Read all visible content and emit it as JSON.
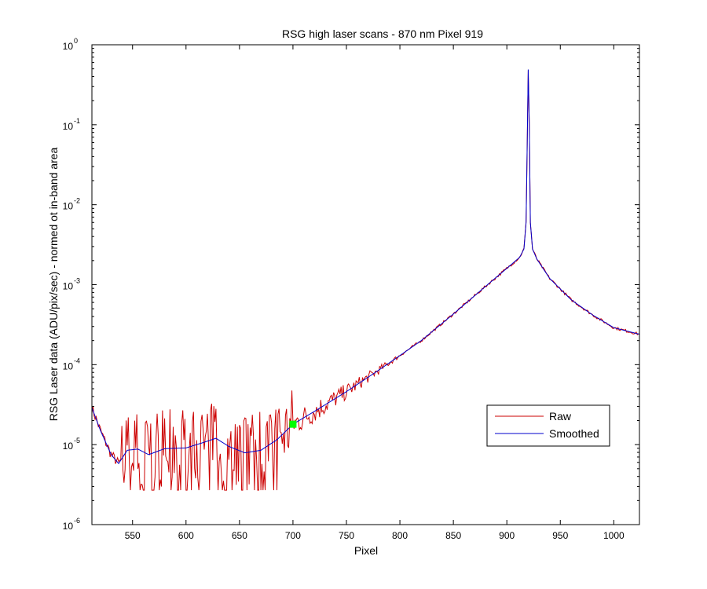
{
  "chart_data": {
    "type": "line",
    "title": "RSG high laser scans  - 870 nm    Pixel 919",
    "xlabel": "Pixel",
    "ylabel": "RSG Laser data (ADU/pix/sec) - normed ot in-band area",
    "xlim": [
      512,
      1024
    ],
    "ylim": [
      1e-06,
      1
    ],
    "yscale": "log",
    "grid": false,
    "legend_position": "right",
    "xticks": [
      550,
      600,
      650,
      700,
      750,
      800,
      850,
      900,
      950,
      1000
    ],
    "yticks": [
      {
        "base": "10",
        "exp": "0",
        "value": 1
      },
      {
        "base": "10",
        "exp": "-1",
        "value": 0.1
      },
      {
        "base": "10",
        "exp": "-2",
        "value": 0.01
      },
      {
        "base": "10",
        "exp": "-3",
        "value": 0.001
      },
      {
        "base": "10",
        "exp": "-4",
        "value": 0.0001
      },
      {
        "base": "10",
        "exp": "-5",
        "value": 1e-05
      },
      {
        "base": "10",
        "exp": "-6",
        "value": 1e-06
      }
    ],
    "series": [
      {
        "name": "Raw",
        "color": "#cc0000",
        "noisy": true,
        "x": [
          512,
          520,
          530,
          537,
          545,
          555,
          565,
          580,
          600,
          615,
          628,
          640,
          655,
          670,
          685,
          700,
          720,
          750,
          780,
          800,
          820,
          850,
          880,
          900,
          912,
          916,
          918,
          919,
          920,
          921,
          922,
          924,
          928,
          940,
          960,
          980,
          1000,
          1024
        ],
        "y": [
          2.9e-05,
          1.5e-05,
          7.5e-06,
          5.8e-06,
          8.5e-06,
          8.8e-06,
          7.5e-06,
          8.9e-06,
          9.1e-06,
          1.05e-05,
          1.2e-05,
          9.5e-06,
          7.9e-06,
          8.5e-06,
          1.15e-05,
          1.8e-05,
          2.6e-05,
          4.6e-05,
          8.5e-05,
          0.00013,
          0.0002,
          0.00043,
          0.00095,
          0.0016,
          0.0022,
          0.0028,
          0.006,
          0.05,
          0.49,
          0.1,
          0.006,
          0.0028,
          0.0021,
          0.0012,
          0.00065,
          0.00042,
          0.00029,
          0.00024
        ]
      },
      {
        "name": "Smoothed",
        "color": "#0000cc",
        "noisy": false,
        "x": [
          512,
          520,
          530,
          537,
          545,
          555,
          565,
          580,
          600,
          615,
          628,
          640,
          655,
          670,
          685,
          700,
          720,
          750,
          780,
          800,
          820,
          850,
          880,
          900,
          912,
          916,
          918,
          919,
          920,
          921,
          922,
          924,
          928,
          940,
          960,
          980,
          1000,
          1024
        ],
        "y": [
          2.9e-05,
          1.5e-05,
          7.5e-06,
          5.8e-06,
          8.5e-06,
          8.8e-06,
          7.5e-06,
          8.9e-06,
          9.1e-06,
          1.05e-05,
          1.2e-05,
          9.5e-06,
          7.9e-06,
          8.5e-06,
          1.15e-05,
          1.8e-05,
          2.6e-05,
          4.6e-05,
          8.5e-05,
          0.00013,
          0.0002,
          0.00043,
          0.00095,
          0.0016,
          0.0022,
          0.0028,
          0.006,
          0.05,
          0.49,
          0.1,
          0.006,
          0.0028,
          0.0021,
          0.0012,
          0.00065,
          0.00042,
          0.00029,
          0.00024
        ]
      }
    ],
    "marker": {
      "x": 700,
      "y": 1.8e-05,
      "color": "#00ff00"
    }
  }
}
